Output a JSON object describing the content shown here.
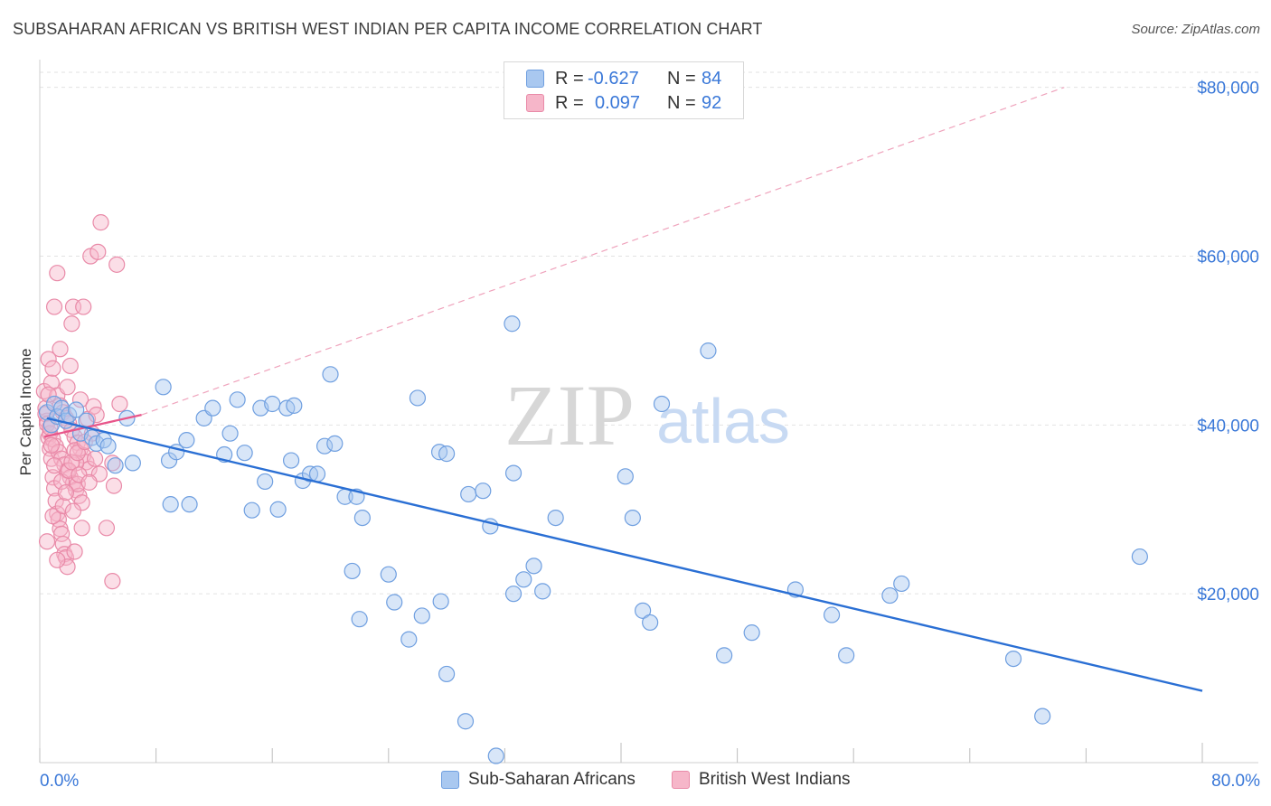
{
  "header": {
    "title": "SUBSAHARAN AFRICAN VS BRITISH WEST INDIAN PER CAPITA INCOME CORRELATION CHART",
    "source": "Source: ZipAtlas.com"
  },
  "watermark": {
    "zip": "ZIP",
    "atlas": "atlas"
  },
  "legend": {
    "rows": [
      {
        "r_label": "R =",
        "r_value": "-0.627",
        "n_label": "N =",
        "n_value": "84"
      },
      {
        "r_label": "R =",
        "r_value": "0.097",
        "n_label": "N =",
        "n_value": "92"
      }
    ]
  },
  "bottom_legend": {
    "items": [
      {
        "label": "Sub-Saharan Africans"
      },
      {
        "label": "British West Indians"
      }
    ]
  },
  "colors": {
    "blue_fill": "#a9c8f0",
    "blue_stroke": "#6f9fe0",
    "blue_line": "#2a6fd4",
    "pink_fill": "#f6b6c9",
    "pink_stroke": "#e98aa8",
    "pink_line": "#e8558a",
    "tick_label": "#3a78d8",
    "grid": "#e2e2e2"
  },
  "chart_data": {
    "type": "scatter",
    "title": "SUBSAHARAN AFRICAN VS BRITISH WEST INDIAN PER CAPITA INCOME CORRELATION CHART",
    "xlabel": "",
    "ylabel": "Per Capita Income",
    "xlim": [
      0,
      80
    ],
    "ylim": [
      0,
      82000
    ],
    "x_tick_labels": [
      "0.0%",
      "80.0%"
    ],
    "y_ticks": [
      20000,
      40000,
      60000,
      80000
    ],
    "y_tick_labels": [
      "$20,000",
      "$40,000",
      "$60,000",
      "$80,000"
    ],
    "grid": true,
    "legend_position": "top-center",
    "series": [
      {
        "name": "Sub-Saharan Africans",
        "color": "#a9c8f0",
        "R": -0.627,
        "N": 84,
        "trend": {
          "x": [
            0.5,
            80
          ],
          "y": [
            40800,
            8500
          ]
        },
        "points": [
          [
            0.5,
            41500
          ],
          [
            0.8,
            40000
          ],
          [
            1.0,
            42500
          ],
          [
            1.2,
            41000
          ],
          [
            1.5,
            42000
          ],
          [
            1.8,
            40500
          ],
          [
            2.0,
            41200
          ],
          [
            2.5,
            41800
          ],
          [
            2.8,
            39000
          ],
          [
            3.2,
            40500
          ],
          [
            3.6,
            38500
          ],
          [
            3.9,
            37800
          ],
          [
            4.4,
            38200
          ],
          [
            4.7,
            37500
          ],
          [
            5.2,
            35200
          ],
          [
            6.0,
            40800
          ],
          [
            6.4,
            35500
          ],
          [
            8.5,
            44500
          ],
          [
            8.9,
            35800
          ],
          [
            9.4,
            36800
          ],
          [
            10.1,
            38200
          ],
          [
            11.3,
            40800
          ],
          [
            11.9,
            42000
          ],
          [
            12.7,
            36500
          ],
          [
            13.1,
            39000
          ],
          [
            13.6,
            43000
          ],
          [
            14.1,
            36700
          ],
          [
            15.2,
            42000
          ],
          [
            15.5,
            33300
          ],
          [
            16.0,
            42500
          ],
          [
            17.0,
            42000
          ],
          [
            17.5,
            42300
          ],
          [
            17.3,
            35800
          ],
          [
            18.1,
            33400
          ],
          [
            18.6,
            34200
          ],
          [
            19.1,
            34200
          ],
          [
            19.6,
            37500
          ],
          [
            20.0,
            46000
          ],
          [
            20.3,
            37800
          ],
          [
            21.0,
            31500
          ],
          [
            21.8,
            31500
          ],
          [
            22.2,
            29000
          ],
          [
            26.0,
            43200
          ],
          [
            27.5,
            36800
          ],
          [
            28.0,
            36600
          ],
          [
            29.5,
            31800
          ],
          [
            30.5,
            32200
          ],
          [
            31.0,
            28000
          ],
          [
            32.5,
            52000
          ],
          [
            32.6,
            34300
          ],
          [
            35.5,
            29000
          ],
          [
            9.0,
            30600
          ],
          [
            10.3,
            30600
          ],
          [
            14.6,
            29900
          ],
          [
            16.4,
            30000
          ],
          [
            21.5,
            22700
          ],
          [
            22.0,
            17000
          ],
          [
            24.0,
            22300
          ],
          [
            24.4,
            19000
          ],
          [
            25.4,
            14600
          ],
          [
            26.3,
            17400
          ],
          [
            27.6,
            19100
          ],
          [
            28.0,
            10500
          ],
          [
            29.3,
            4900
          ],
          [
            31.4,
            800
          ],
          [
            32.6,
            20000
          ],
          [
            33.3,
            21700
          ],
          [
            34.0,
            23300
          ],
          [
            34.6,
            20300
          ],
          [
            40.3,
            33900
          ],
          [
            40.8,
            29000
          ],
          [
            41.5,
            18000
          ],
          [
            42.0,
            16600
          ],
          [
            42.8,
            42500
          ],
          [
            46.0,
            48800
          ],
          [
            47.1,
            12700
          ],
          [
            49.0,
            15400
          ],
          [
            52.0,
            20500
          ],
          [
            54.5,
            17500
          ],
          [
            55.5,
            12700
          ],
          [
            58.5,
            19800
          ],
          [
            59.3,
            21200
          ],
          [
            67.0,
            12300
          ],
          [
            69.0,
            5500
          ],
          [
            75.7,
            24400
          ]
        ]
      },
      {
        "name": "British West Indians",
        "color": "#f6b6c9",
        "R": 0.097,
        "N": 92,
        "trend": {
          "x": [
            0.3,
            7.0
          ],
          "y": [
            38600,
            41200
          ]
        },
        "trend_ext": {
          "x": [
            7.0,
            70.5
          ],
          "y": [
            41200,
            80000
          ]
        },
        "points": [
          [
            0.3,
            44000
          ],
          [
            0.4,
            42000
          ],
          [
            0.5,
            40500
          ],
          [
            0.6,
            38500
          ],
          [
            0.7,
            37200
          ],
          [
            0.8,
            36000
          ],
          [
            0.9,
            33800
          ],
          [
            1.0,
            32500
          ],
          [
            1.1,
            31000
          ],
          [
            1.2,
            29500
          ],
          [
            1.3,
            28800
          ],
          [
            1.4,
            27700
          ],
          [
            1.5,
            27100
          ],
          [
            1.6,
            25900
          ],
          [
            1.7,
            24700
          ],
          [
            1.8,
            24300
          ],
          [
            0.6,
            47800
          ],
          [
            0.8,
            45000
          ],
          [
            1.2,
            43500
          ],
          [
            1.4,
            42300
          ],
          [
            1.6,
            41500
          ],
          [
            1.8,
            40800
          ],
          [
            2.0,
            40200
          ],
          [
            2.2,
            39400
          ],
          [
            2.4,
            38600
          ],
          [
            2.6,
            37900
          ],
          [
            2.8,
            37200
          ],
          [
            3.0,
            36400
          ],
          [
            3.2,
            35600
          ],
          [
            3.4,
            34800
          ],
          [
            0.4,
            41300
          ],
          [
            0.5,
            40100
          ],
          [
            0.7,
            39000
          ],
          [
            0.9,
            38300
          ],
          [
            1.1,
            37500
          ],
          [
            1.3,
            36800
          ],
          [
            1.5,
            36000
          ],
          [
            1.7,
            35300
          ],
          [
            1.9,
            34600
          ],
          [
            2.1,
            33800
          ],
          [
            2.3,
            33100
          ],
          [
            2.5,
            32300
          ],
          [
            2.7,
            31600
          ],
          [
            2.9,
            30800
          ],
          [
            1.0,
            54000
          ],
          [
            1.2,
            58000
          ],
          [
            1.4,
            49000
          ],
          [
            1.9,
            44500
          ],
          [
            2.1,
            47000
          ],
          [
            2.2,
            52000
          ],
          [
            2.3,
            54000
          ],
          [
            2.4,
            37000
          ],
          [
            2.5,
            35500
          ],
          [
            2.6,
            33000
          ],
          [
            2.8,
            43000
          ],
          [
            3.0,
            54000
          ],
          [
            3.5,
            60000
          ],
          [
            4.0,
            60500
          ],
          [
            4.2,
            64000
          ],
          [
            5.3,
            59000
          ],
          [
            5.5,
            42500
          ],
          [
            5.0,
            35500
          ],
          [
            5.1,
            32800
          ],
          [
            4.6,
            27800
          ],
          [
            5.0,
            21500
          ],
          [
            3.6,
            39000
          ],
          [
            3.8,
            36000
          ],
          [
            4.1,
            34200
          ],
          [
            2.9,
            27800
          ],
          [
            2.4,
            25000
          ],
          [
            1.9,
            23200
          ],
          [
            0.9,
            29200
          ],
          [
            0.5,
            26200
          ],
          [
            1.2,
            24000
          ],
          [
            1.5,
            33300
          ],
          [
            2.0,
            34600
          ],
          [
            2.2,
            35600
          ],
          [
            2.6,
            36700
          ],
          [
            3.1,
            38000
          ],
          [
            3.3,
            40700
          ],
          [
            3.7,
            42200
          ],
          [
            0.8,
            37600
          ],
          [
            1.0,
            35200
          ],
          [
            1.6,
            30400
          ],
          [
            0.6,
            43600
          ],
          [
            0.7,
            39700
          ],
          [
            2.7,
            34100
          ],
          [
            1.8,
            32000
          ],
          [
            2.3,
            29800
          ],
          [
            3.4,
            33200
          ],
          [
            0.9,
            46700
          ],
          [
            3.9,
            41200
          ]
        ]
      }
    ]
  }
}
